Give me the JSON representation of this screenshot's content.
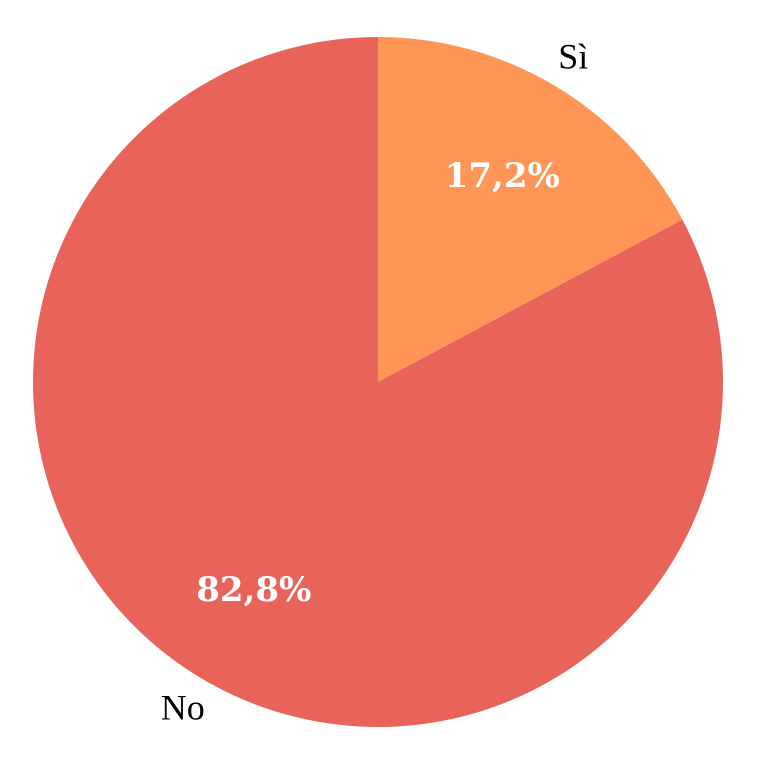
{
  "chart_data": {
    "type": "pie",
    "title": "",
    "start": "top",
    "direction": "clockwise",
    "slices": [
      {
        "label": "Sì",
        "value": 17.2,
        "value_label": "17,2%",
        "color": "#FF9655"
      },
      {
        "label": "No",
        "value": 82.8,
        "value_label": "82,8%",
        "color": "#E8635A"
      }
    ],
    "legend": "none"
  }
}
